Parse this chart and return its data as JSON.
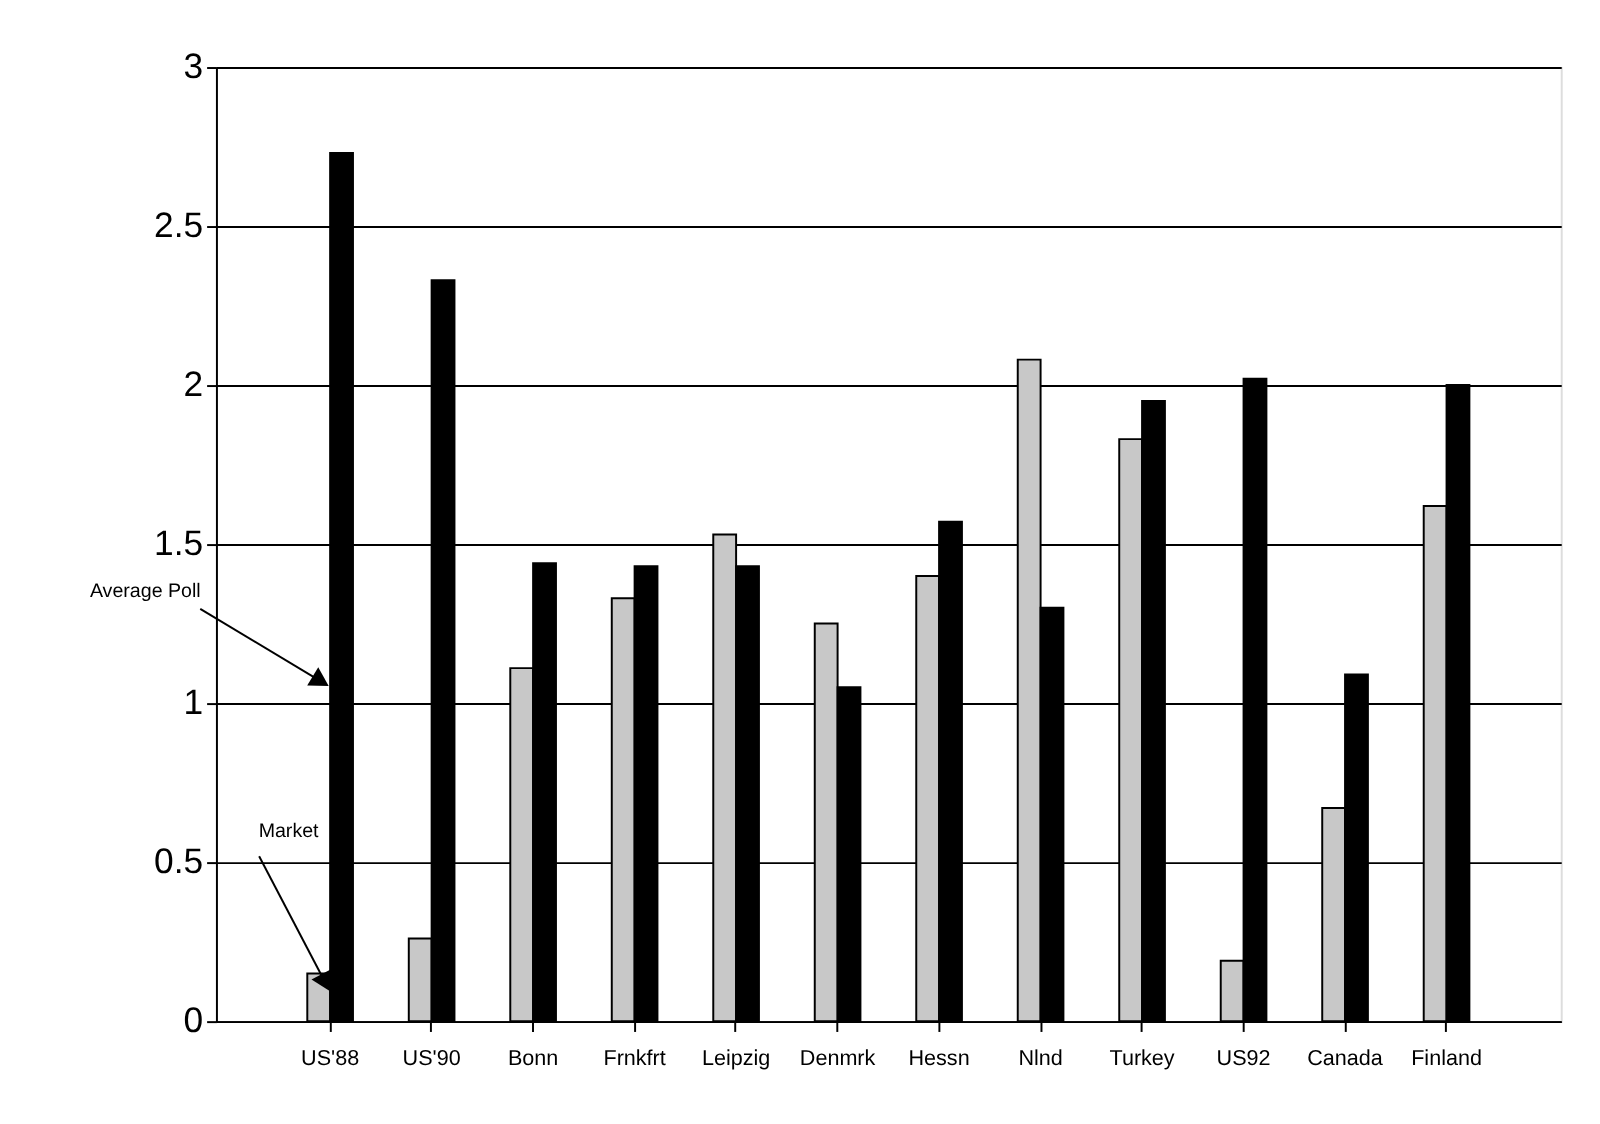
{
  "chart_data": {
    "type": "bar",
    "categories": [
      "US'88",
      "US'90",
      "Bonn",
      "Frnkfrt",
      "Leipzig",
      "Denmrk",
      "Hessn",
      "Nlnd",
      "Turkey",
      "US92",
      "Canada",
      "Finland"
    ],
    "series": [
      {
        "name": "Market",
        "color": "#c8c8c8",
        "values": [
          0.15,
          0.26,
          1.11,
          1.33,
          1.53,
          1.25,
          1.4,
          2.08,
          1.83,
          0.19,
          0.67,
          1.62
        ]
      },
      {
        "name": "Average Poll",
        "color": "#000000",
        "values": [
          2.73,
          2.33,
          1.44,
          1.43,
          1.43,
          1.05,
          1.57,
          1.3,
          1.95,
          2.02,
          1.09,
          2.0
        ]
      }
    ],
    "ylim": [
      0,
      3
    ],
    "yticks": [
      0,
      0.5,
      1,
      1.5,
      2,
      2.5,
      3
    ],
    "grid": "y",
    "legend": false
  }
}
